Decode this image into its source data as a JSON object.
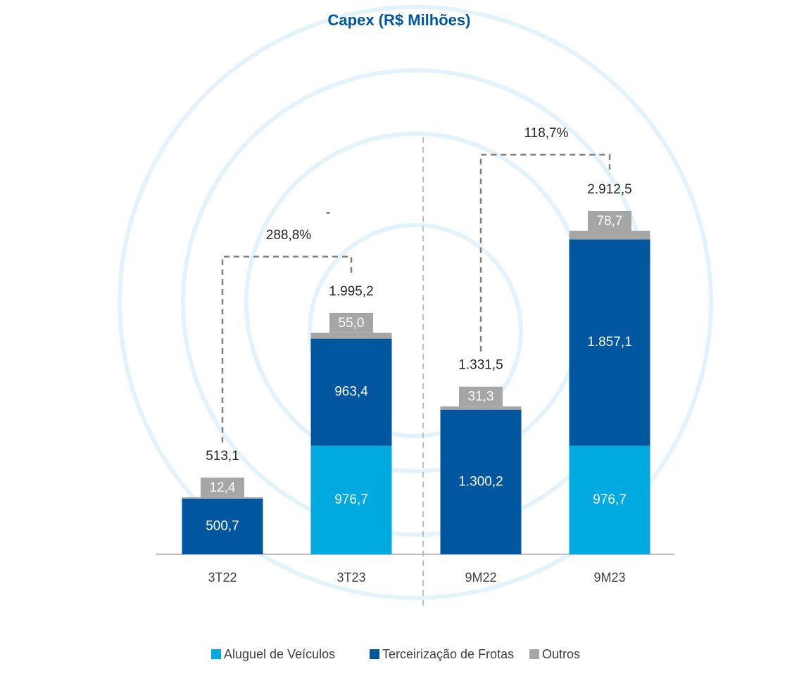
{
  "chart_data": {
    "type": "stacked_bar",
    "title": "Capex (R$ Milhões)",
    "categories": [
      "3T22",
      "3T23",
      "9M22",
      "9M23"
    ],
    "series": [
      {
        "name": "Aluguel de Veículos",
        "color": "#00a9e0",
        "values": [
          null,
          976.7,
          null,
          976.7
        ],
        "value_labels": [
          null,
          "976,7",
          null,
          "976,7"
        ]
      },
      {
        "name": "Terceirização de Frotas",
        "color": "#0057a0",
        "values": [
          500.7,
          963.4,
          1300.2,
          1857.1
        ],
        "value_labels": [
          "500,7",
          "963,4",
          "1.300,2",
          "1.857,1"
        ]
      },
      {
        "name": "Outros",
        "color": "#a6a6a6",
        "values": [
          12.4,
          55.0,
          31.3,
          78.7
        ],
        "value_labels": [
          "12,4",
          "55,0",
          "31,3",
          "78,7"
        ]
      }
    ],
    "totals": [
      513.1,
      1995.2,
      1331.5,
      2912.5
    ],
    "total_labels": [
      "513,1",
      "1.995,2",
      "1.331,5",
      "2.912,5"
    ],
    "growth": [
      288.8,
      118.7
    ],
    "growth_labels": [
      "288,8%",
      "118,7%"
    ],
    "annotations": [
      "-"
    ]
  }
}
